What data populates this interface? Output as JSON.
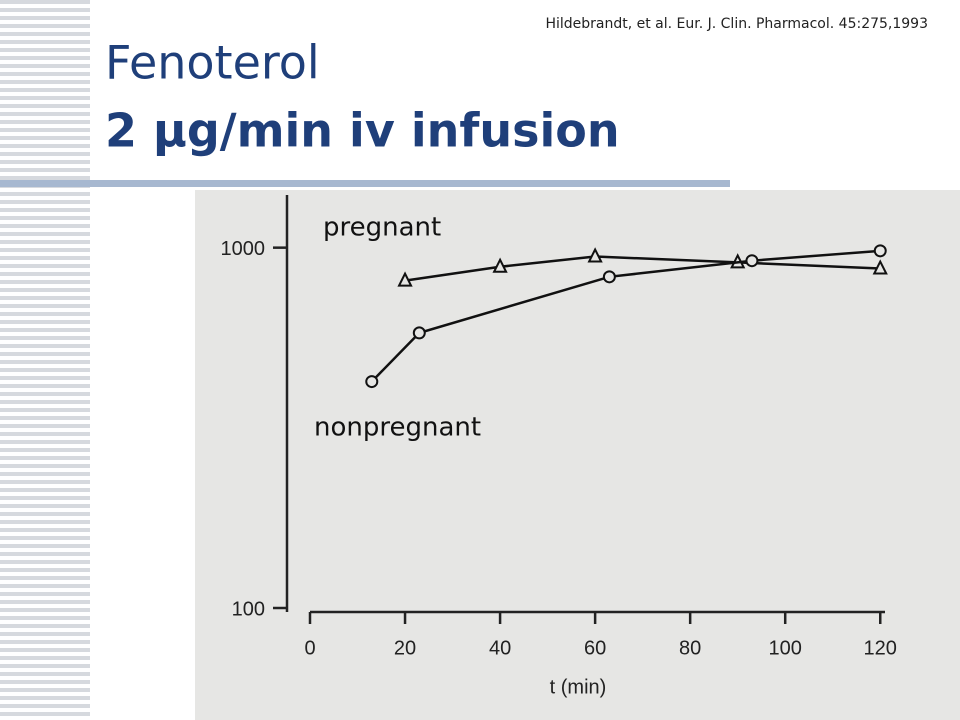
{
  "slide": {
    "citation": "Hildebrandt, et al.  Eur. J. Clin. Pharmacol. 45:275,1993",
    "title": [
      "Fenoterol",
      "2 μg/min iv infusion"
    ]
  },
  "chart_data": {
    "type": "line",
    "x_label": "t (min)",
    "log_y": true,
    "xlim": [
      0,
      121
    ],
    "xticks": [
      0,
      20,
      40,
      60,
      80,
      100,
      120
    ],
    "ylim": [
      100,
      1400
    ],
    "yticks": [
      100,
      {
        "value": 1000,
        "label": "1000"
      }
    ],
    "series": [
      {
        "name": "pregnant",
        "color": "#111111",
        "marker": "triangle",
        "x": [
          20,
          40,
          60,
          90,
          120
        ],
        "values": [
          810,
          885,
          945,
          910,
          875
        ]
      },
      {
        "name": "nonpregnant",
        "color": "#111111",
        "marker": "circle",
        "x": [
          13,
          23,
          63,
          93,
          120
        ],
        "values": [
          425,
          580,
          830,
          920,
          980
        ]
      }
    ]
  }
}
